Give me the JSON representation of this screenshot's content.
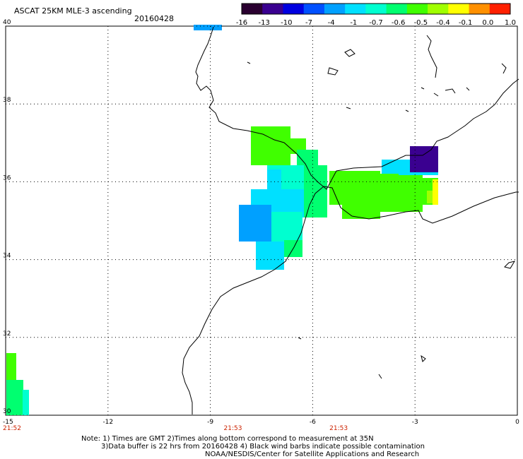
{
  "header": {
    "product": "ASCAT 25KM MLE-3 ascending",
    "date": "20160428"
  },
  "colorbar": {
    "tick_labels": [
      "-16",
      "-13",
      "-10",
      "-7",
      "-4",
      "-1",
      "-0.7",
      "-0.6",
      "-0.5",
      "-0.4",
      "-0.1",
      "0.0",
      "1.0"
    ],
    "colors": [
      "#2a0030",
      "#3a0090",
      "#0000e0",
      "#0050ff",
      "#00a0ff",
      "#00e0ff",
      "#00ffd0",
      "#00ff70",
      "#40ff00",
      "#a0ff00",
      "#ffff00",
      "#ff9000",
      "#ff2000"
    ]
  },
  "map": {
    "lon_range": [
      -15,
      0
    ],
    "lat_range": [
      30,
      40
    ],
    "lon_ticks": [
      "-15",
      "-12",
      "-9",
      "-6",
      "-3",
      "0"
    ],
    "lat_ticks": [
      "40",
      "38",
      "36",
      "34",
      "32",
      "30"
    ],
    "times": [
      "21:52",
      "21:53",
      "21:53"
    ],
    "time_color": "#cc2200",
    "coast_color": "#000000",
    "grid": true
  },
  "footer": {
    "line1": "Note: 1) Times are GMT 2)Times along bottom correspond to measurement at 35N",
    "line2": "3)Data buffer is 22 hrs from 20160428 4) Black wind barbs indicate possible contamination",
    "line3": "NOAA/NESDIS/Center for Satellite Applications and Research"
  }
}
